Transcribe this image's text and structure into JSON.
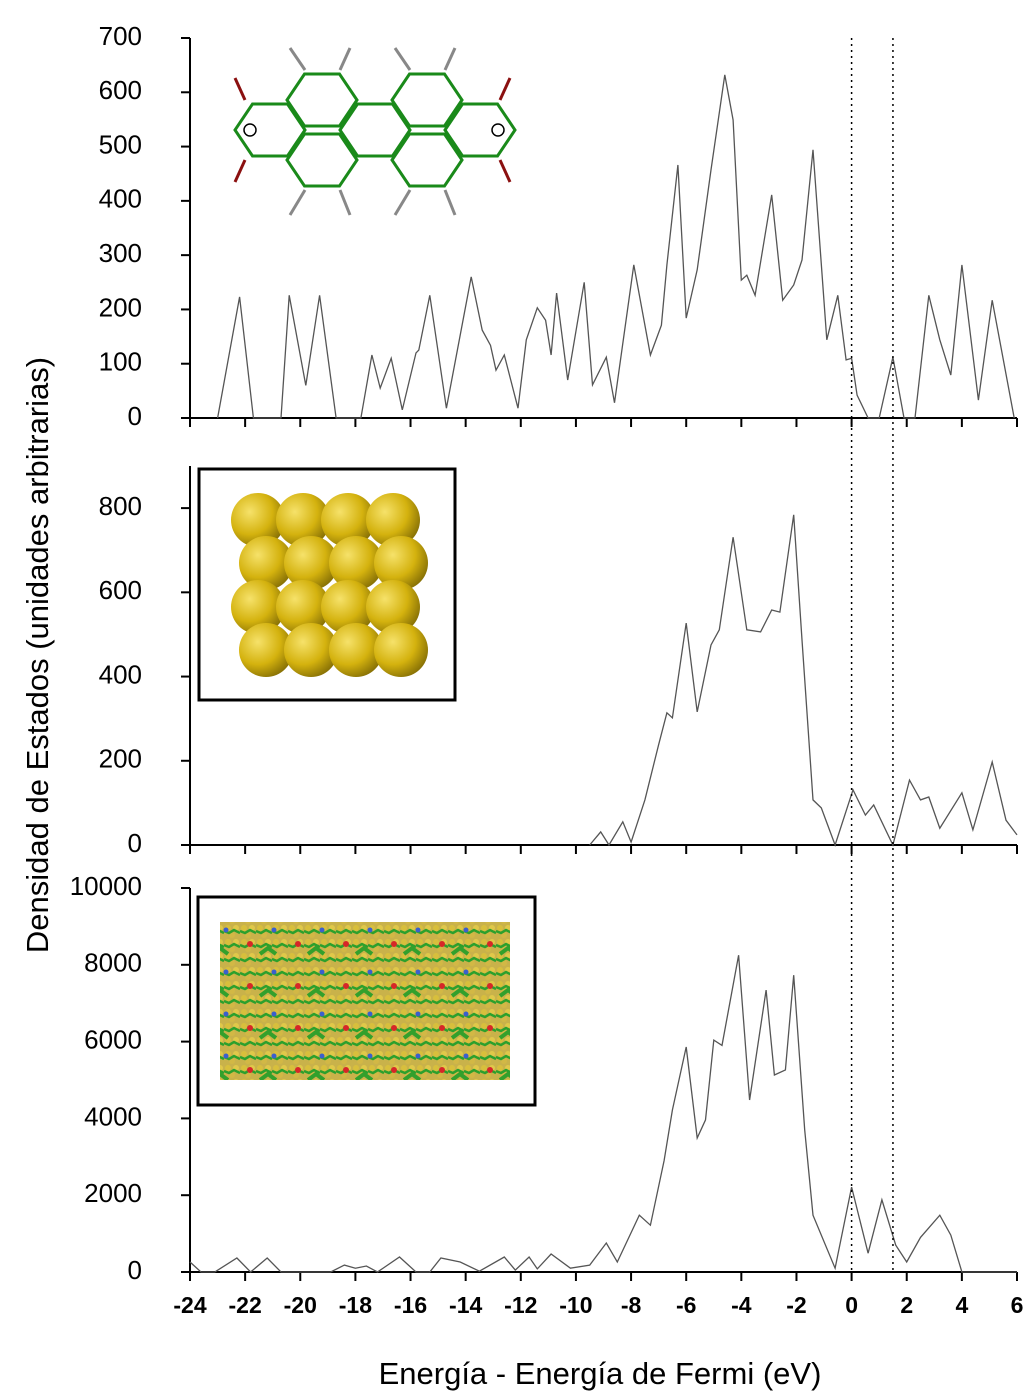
{
  "chart_data": [
    {
      "type": "line",
      "color": "#555555",
      "xlim": [
        -24,
        6
      ],
      "ylim": [
        0,
        700
      ],
      "yticks": [
        0,
        100,
        200,
        300,
        400,
        500,
        600,
        700
      ],
      "vlines": [
        0,
        1.5
      ],
      "x": [
        -23.0,
        -22.2,
        -21.7,
        -20.7,
        -20.4,
        -19.8,
        -19.3,
        -18.7,
        -17.8,
        -17.4,
        -17.1,
        -16.7,
        -16.3,
        -15.8,
        -15.7,
        -15.3,
        -14.7,
        -13.8,
        -13.4,
        -13.1,
        -12.9,
        -12.6,
        -12.1,
        -11.8,
        -11.4,
        -11.1,
        -10.9,
        -10.7,
        -10.3,
        -9.7,
        -9.4,
        -8.9,
        -8.6,
        -7.9,
        -7.3,
        -6.9,
        -6.7,
        -6.3,
        -6.0,
        -5.6,
        -5.1,
        -4.6,
        -4.3,
        -4.0,
        -3.8,
        -3.5,
        -2.9,
        -2.5,
        -2.1,
        -1.8,
        -1.4,
        -0.9,
        -0.5,
        -0.2,
        0.0,
        0.2,
        0.6,
        1.0,
        1.5,
        1.9,
        2.3,
        2.8,
        3.2,
        3.6,
        4.0,
        4.6,
        5.1,
        5.9
      ],
      "values": [
        0,
        223,
        0,
        0,
        226,
        60,
        226,
        0,
        0,
        116,
        55,
        110,
        15,
        120,
        125,
        226,
        18,
        260,
        162,
        134,
        88,
        116,
        18,
        144,
        203,
        180,
        116,
        230,
        70,
        250,
        61,
        112,
        28,
        282,
        116,
        171,
        282,
        466,
        184,
        273,
        457,
        632,
        549,
        254,
        263,
        226,
        411,
        217,
        245,
        291,
        494,
        144,
        226,
        107,
        110,
        42,
        0,
        0,
        112,
        0,
        0,
        226,
        144,
        79,
        282,
        33,
        217,
        0
      ]
    },
    {
      "type": "line",
      "color": "#555555",
      "xlim": [
        -24,
        6
      ],
      "ylim": [
        0,
        900
      ],
      "yticks": [
        0,
        200,
        400,
        600,
        800
      ],
      "ylabel": "Densidad de Estados (unidades arbitrarias)",
      "x": [
        -9.5,
        -9.1,
        -8.8,
        -8.3,
        -8.0,
        -7.5,
        -7.0,
        -6.7,
        -6.5,
        -6.0,
        -5.6,
        -5.1,
        -4.8,
        -4.3,
        -3.8,
        -3.3,
        -2.9,
        -2.6,
        -2.1,
        -1.8,
        -1.4,
        -1.1,
        -0.6,
        0.05,
        0.5,
        0.8,
        1.5,
        2.1,
        2.5,
        2.8,
        3.2,
        4.0,
        4.4,
        5.1,
        5.6,
        6.0
      ],
      "values": [
        0,
        31,
        0,
        55,
        7,
        107,
        238,
        314,
        302,
        527,
        316,
        475,
        511,
        731,
        511,
        506,
        558,
        553,
        784,
        487,
        107,
        88,
        0,
        131,
        71,
        95,
        0,
        154,
        107,
        114,
        40,
        124,
        36,
        197,
        59,
        24
      ]
    },
    {
      "type": "line",
      "color": "#555555",
      "xlim": [
        -24,
        6
      ],
      "ylim": [
        0,
        10000
      ],
      "yticks": [
        0,
        2000,
        4000,
        6000,
        8000,
        10000
      ],
      "xticks": [
        -24,
        -22,
        -20,
        -18,
        -16,
        -14,
        -12,
        -10,
        -8,
        -6,
        -4,
        -2,
        0,
        2,
        4,
        6
      ],
      "xlabel": "Energía - Energía de Fermi (eV)",
      "x": [
        -24.0,
        -23.6,
        -23.1,
        -22.3,
        -21.8,
        -21.2,
        -20.7,
        -18.9,
        -18.4,
        -18.0,
        -17.6,
        -17.2,
        -16.4,
        -15.8,
        -15.3,
        -14.9,
        -14.2,
        -13.5,
        -12.6,
        -12.2,
        -11.7,
        -11.4,
        -10.9,
        -10.2,
        -9.5,
        -8.9,
        -8.5,
        -7.7,
        -7.3,
        -6.8,
        -6.5,
        -6.0,
        -5.6,
        -5.3,
        -5.0,
        -4.7,
        -4.1,
        -3.7,
        -3.1,
        -2.8,
        -2.4,
        -2.1,
        -1.7,
        -1.4,
        -0.6,
        0.0,
        0.6,
        1.1,
        1.6,
        2.0,
        2.5,
        3.2,
        3.6,
        4.0,
        6.0
      ],
      "values": [
        260,
        0,
        0,
        365,
        0,
        365,
        0,
        0,
        180,
        100,
        156,
        0,
        390,
        0,
        0,
        365,
        260,
        20,
        390,
        50,
        390,
        80,
        470,
        100,
        180,
        755,
        260,
        1480,
        1220,
        2900,
        4220,
        5860,
        3490,
        3960,
        6040,
        5900,
        8250,
        4480,
        7340,
        5130,
        5260,
        7730,
        3700,
        1480,
        100,
        2210,
        490,
        1880,
        700,
        260,
        900,
        1480,
        960,
        0,
        0
      ]
    }
  ]
}
